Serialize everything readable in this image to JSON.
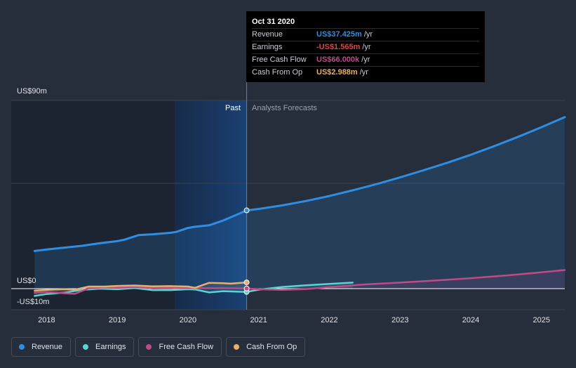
{
  "chart_data": {
    "type": "line",
    "x_ticks": [
      "2018",
      "2019",
      "2020",
      "2021",
      "2022",
      "2023",
      "2024",
      "2025"
    ],
    "x_tick_values": [
      2018,
      2019,
      2020,
      2021,
      2022,
      2023,
      2024,
      2025
    ],
    "y_labels": {
      "top": "US$90m",
      "zero": "US$0",
      "bottom": "-US$10m"
    },
    "ylim": [
      -10,
      90
    ],
    "xlim": [
      2017.5,
      2025.33
    ],
    "past_label": "Past",
    "forecast_label": "Analysts Forecasts",
    "divider_x": 2020.83,
    "series": [
      {
        "name": "Revenue",
        "color": "#2d8ee4",
        "points": [
          [
            2017.83,
            18.0
          ],
          [
            2018.0,
            18.7
          ],
          [
            2018.25,
            19.6
          ],
          [
            2018.5,
            20.5
          ],
          [
            2018.75,
            21.7
          ],
          [
            2019.0,
            22.7
          ],
          [
            2019.1,
            23.4
          ],
          [
            2019.3,
            25.6
          ],
          [
            2019.5,
            26.0
          ],
          [
            2019.75,
            26.7
          ],
          [
            2019.83,
            27.1
          ],
          [
            2020.0,
            29.0
          ],
          [
            2020.1,
            29.6
          ],
          [
            2020.3,
            30.3
          ],
          [
            2020.5,
            32.6
          ],
          [
            2020.83,
            37.425
          ],
          [
            2021.0,
            38.1
          ],
          [
            2021.33,
            39.8
          ],
          [
            2021.67,
            41.9
          ],
          [
            2022.0,
            44.3
          ],
          [
            2022.33,
            47.0
          ],
          [
            2022.67,
            50.0
          ],
          [
            2023.0,
            53.2
          ],
          [
            2023.33,
            56.6
          ],
          [
            2023.67,
            60.2
          ],
          [
            2024.0,
            64.0
          ],
          [
            2024.33,
            68.1
          ],
          [
            2024.67,
            72.6
          ],
          [
            2025.0,
            77.2
          ],
          [
            2025.33,
            82.0
          ]
        ]
      },
      {
        "name": "Earnings",
        "color": "#5ad4d0",
        "points": [
          [
            2017.83,
            -3.5
          ],
          [
            2018.0,
            -2.6
          ],
          [
            2018.25,
            -1.9
          ],
          [
            2018.5,
            -0.6
          ],
          [
            2018.75,
            0.0
          ],
          [
            2019.0,
            -0.3
          ],
          [
            2019.25,
            0.3
          ],
          [
            2019.5,
            -0.7
          ],
          [
            2019.75,
            -0.7
          ],
          [
            2020.0,
            -0.3
          ],
          [
            2020.1,
            -0.4
          ],
          [
            2020.3,
            -1.8
          ],
          [
            2020.5,
            -1.2
          ],
          [
            2020.83,
            -1.565
          ],
          [
            2021.0,
            -0.5
          ],
          [
            2021.33,
            0.8
          ],
          [
            2021.67,
            1.6
          ],
          [
            2022.0,
            2.3
          ],
          [
            2022.33,
            2.9
          ]
        ]
      },
      {
        "name": "Free Cash Flow",
        "color": "#c04a88",
        "points": [
          [
            2017.83,
            -2.0
          ],
          [
            2018.0,
            -1.6
          ],
          [
            2018.25,
            -2.2
          ],
          [
            2018.4,
            -2.5
          ],
          [
            2018.6,
            0.2
          ],
          [
            2018.83,
            0.6
          ],
          [
            2019.0,
            0.4
          ],
          [
            2019.25,
            0.8
          ],
          [
            2019.5,
            0.3
          ],
          [
            2019.75,
            0.4
          ],
          [
            2020.0,
            0.3
          ],
          [
            2020.25,
            0.2
          ],
          [
            2020.5,
            0.2
          ],
          [
            2020.83,
            0.066
          ],
          [
            2021.0,
            -0.3
          ],
          [
            2021.33,
            -0.6
          ],
          [
            2021.67,
            -0.2
          ],
          [
            2022.0,
            0.7
          ],
          [
            2022.5,
            2.0
          ],
          [
            2023.0,
            2.9
          ],
          [
            2023.5,
            3.9
          ],
          [
            2024.0,
            5.0
          ],
          [
            2024.5,
            6.3
          ],
          [
            2025.0,
            7.8
          ],
          [
            2025.33,
            8.9
          ]
        ]
      },
      {
        "name": "Cash From Op",
        "color": "#e8b06a",
        "points": [
          [
            2017.83,
            -1.0
          ],
          [
            2018.0,
            -0.6
          ],
          [
            2018.25,
            -0.3
          ],
          [
            2018.4,
            -0.5
          ],
          [
            2018.6,
            1.0
          ],
          [
            2018.83,
            1.0
          ],
          [
            2019.0,
            1.3
          ],
          [
            2019.25,
            1.5
          ],
          [
            2019.5,
            1.1
          ],
          [
            2019.75,
            1.2
          ],
          [
            2020.0,
            1.0
          ],
          [
            2020.1,
            0.4
          ],
          [
            2020.3,
            2.8
          ],
          [
            2020.5,
            2.6
          ],
          [
            2020.6,
            2.4
          ],
          [
            2020.83,
            2.988
          ]
        ]
      }
    ],
    "tooltip": {
      "date": "Oct 31 2020",
      "rows": [
        {
          "label": "Revenue",
          "value": "US$37.425m",
          "unit": "/yr",
          "color": "#2d8ee4"
        },
        {
          "label": "Earnings",
          "value": "-US$1.565m",
          "unit": "/yr",
          "color": "#e0443e"
        },
        {
          "label": "Free Cash Flow",
          "value": "US$66.000k",
          "unit": "/yr",
          "color": "#c04a88"
        },
        {
          "label": "Cash From Op",
          "value": "US$2.988m",
          "unit": "/yr",
          "color": "#e8b06a"
        }
      ]
    }
  },
  "legend": [
    {
      "label": "Revenue",
      "color": "#2d8ee4"
    },
    {
      "label": "Earnings",
      "color": "#5ad4d0"
    },
    {
      "label": "Free Cash Flow",
      "color": "#c04a88"
    },
    {
      "label": "Cash From Op",
      "color": "#e8b06a"
    }
  ]
}
